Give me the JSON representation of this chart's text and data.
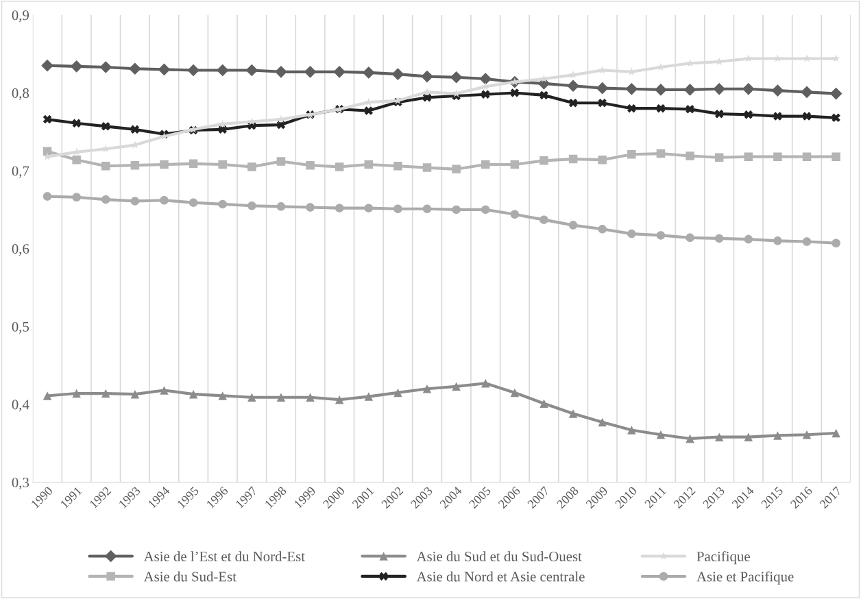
{
  "chart_data": {
    "type": "line",
    "categories": [
      "1990",
      "1991",
      "1992",
      "1993",
      "1994",
      "1995",
      "1996",
      "1997",
      "1998",
      "1999",
      "2000",
      "2001",
      "2002",
      "2003",
      "2004",
      "2005",
      "2006",
      "2007",
      "2008",
      "2009",
      "2010",
      "2011",
      "2012",
      "2013",
      "2014",
      "2015",
      "2016",
      "2017"
    ],
    "ylim": [
      0.3,
      0.9
    ],
    "yticks": [
      {
        "value": 0.3,
        "label": "0,3"
      },
      {
        "value": 0.4,
        "label": "0,4"
      },
      {
        "value": 0.5,
        "label": "0,5"
      },
      {
        "value": 0.6,
        "label": "0,6"
      },
      {
        "value": 0.7,
        "label": "0,7"
      },
      {
        "value": 0.8,
        "label": "0,8"
      },
      {
        "value": 0.9,
        "label": "0,9"
      }
    ],
    "grid": "x",
    "legend": "bottom",
    "series": [
      {
        "name": "Asie de l’Est et du Nord-Est",
        "color": "#5f5f5f",
        "marker": "diamond",
        "values": [
          0.835,
          0.834,
          0.833,
          0.831,
          0.83,
          0.829,
          0.829,
          0.829,
          0.827,
          0.827,
          0.827,
          0.826,
          0.824,
          0.821,
          0.82,
          0.818,
          0.814,
          0.812,
          0.809,
          0.806,
          0.805,
          0.804,
          0.804,
          0.805,
          0.805,
          0.803,
          0.801,
          0.799
        ]
      },
      {
        "name": "Asie du Sud-Est",
        "color": "#b4b4b4",
        "marker": "square",
        "values": [
          0.725,
          0.714,
          0.706,
          0.707,
          0.708,
          0.709,
          0.708,
          0.705,
          0.712,
          0.707,
          0.705,
          0.708,
          0.706,
          0.704,
          0.702,
          0.708,
          0.708,
          0.713,
          0.715,
          0.714,
          0.721,
          0.722,
          0.719,
          0.717,
          0.718,
          0.718,
          0.718,
          0.718
        ]
      },
      {
        "name": "Asie du Sud et du Sud-Ouest",
        "color": "#8c8c8c",
        "marker": "triangle",
        "values": [
          0.411,
          0.414,
          0.414,
          0.413,
          0.418,
          0.413,
          0.411,
          0.409,
          0.409,
          0.409,
          0.406,
          0.41,
          0.415,
          0.42,
          0.423,
          0.427,
          0.415,
          0.401,
          0.388,
          0.377,
          0.367,
          0.361,
          0.356,
          0.358,
          0.358,
          0.36,
          0.361,
          0.363
        ]
      },
      {
        "name": "Asie du Nord et Asie centrale",
        "color": "#222222",
        "marker": "cross",
        "values": [
          0.766,
          0.761,
          0.757,
          0.753,
          0.747,
          0.752,
          0.753,
          0.758,
          0.759,
          0.772,
          0.779,
          0.777,
          0.788,
          0.794,
          0.796,
          0.798,
          0.8,
          0.797,
          0.787,
          0.787,
          0.78,
          0.78,
          0.779,
          0.773,
          0.772,
          0.77,
          0.77,
          0.768
        ]
      },
      {
        "name": "Pacifique",
        "color": "#d9d9d9",
        "marker": "star",
        "values": [
          0.718,
          0.724,
          0.728,
          0.733,
          0.744,
          0.753,
          0.76,
          0.763,
          0.766,
          0.772,
          0.779,
          0.788,
          0.79,
          0.801,
          0.799,
          0.808,
          0.814,
          0.818,
          0.823,
          0.829,
          0.827,
          0.833,
          0.838,
          0.84,
          0.844,
          0.844,
          0.844,
          0.844
        ]
      },
      {
        "name": "Asie et Pacifique",
        "color": "#ababab",
        "marker": "circle",
        "values": [
          0.667,
          0.666,
          0.663,
          0.661,
          0.662,
          0.659,
          0.657,
          0.655,
          0.654,
          0.653,
          0.652,
          0.652,
          0.651,
          0.651,
          0.65,
          0.65,
          0.644,
          0.637,
          0.63,
          0.625,
          0.619,
          0.617,
          0.614,
          0.613,
          0.612,
          0.61,
          0.609,
          0.607
        ]
      }
    ]
  }
}
